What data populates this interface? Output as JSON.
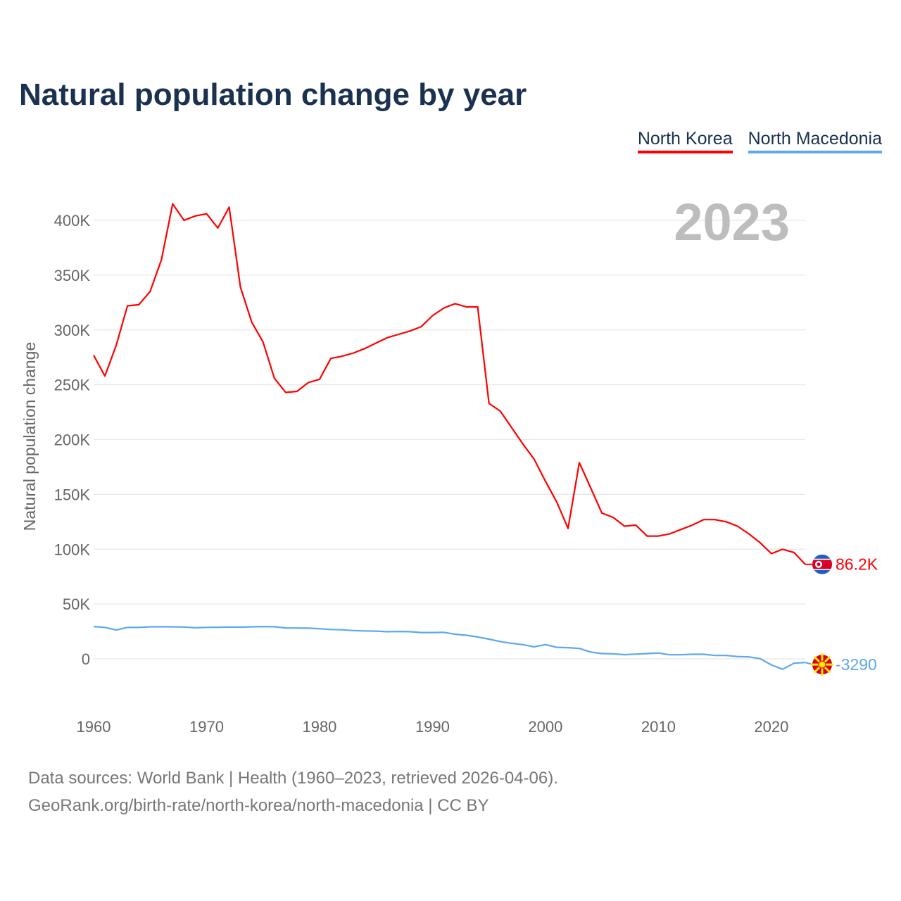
{
  "title": "Natural population change by year",
  "footer": {
    "line1": "Data sources: World Bank | Health (1960–2023, retrieved 2026-04-06).",
    "line2": "GeoRank.org/birth-rate/north-korea/north-macedonia | CC BY"
  },
  "chart_data": {
    "type": "line",
    "title": "Natural population change by year",
    "xlabel": "",
    "ylabel": "Natural population change",
    "year_label": "2023",
    "xlim": [
      1960,
      2023
    ],
    "ylim": [
      -25000,
      430000
    ],
    "x_ticks": [
      1960,
      1970,
      1980,
      1990,
      2000,
      2010,
      2020
    ],
    "y_ticks": [
      0,
      50000,
      100000,
      150000,
      200000,
      250000,
      300000,
      350000,
      400000
    ],
    "y_tick_labels": [
      "0",
      "50K",
      "100K",
      "150K",
      "200K",
      "250K",
      "300K",
      "350K",
      "400K"
    ],
    "grid": true,
    "legend_position": "top-right",
    "x": [
      1960,
      1961,
      1962,
      1963,
      1964,
      1965,
      1966,
      1967,
      1968,
      1969,
      1970,
      1971,
      1972,
      1973,
      1974,
      1975,
      1976,
      1977,
      1978,
      1979,
      1980,
      1981,
      1982,
      1983,
      1984,
      1985,
      1986,
      1987,
      1988,
      1989,
      1990,
      1991,
      1992,
      1993,
      1994,
      1995,
      1996,
      1997,
      1998,
      1999,
      2000,
      2001,
      2002,
      2003,
      2004,
      2005,
      2006,
      2007,
      2008,
      2009,
      2010,
      2011,
      2012,
      2013,
      2014,
      2015,
      2016,
      2017,
      2018,
      2019,
      2020,
      2021,
      2022,
      2023
    ],
    "series": [
      {
        "name": "North Korea",
        "color": "#ff0000",
        "end_label": "86.2K",
        "flag": "north-korea-flag",
        "values": [
          277000,
          258000,
          286000,
          322000,
          323000,
          335000,
          364000,
          415000,
          400000,
          404000,
          406000,
          393000,
          412000,
          339000,
          307000,
          289000,
          256000,
          243000,
          244000,
          252000,
          255000,
          274000,
          276000,
          279000,
          283000,
          288000,
          293000,
          296000,
          299000,
          303000,
          313000,
          320000,
          324000,
          321000,
          321000,
          233000,
          226000,
          211000,
          196000,
          182000,
          162000,
          143000,
          119000,
          179000,
          156000,
          133000,
          129000,
          121000,
          122000,
          112000,
          112000,
          114000,
          118000,
          122000,
          127000,
          127000,
          125000,
          121000,
          114000,
          106000,
          96000,
          100000,
          97000,
          86200
        ]
      },
      {
        "name": "North Macedonia",
        "color": "#5da8ea",
        "end_label": "-3290",
        "flag": "north-macedonia-flag",
        "values": [
          29500,
          28700,
          26300,
          28700,
          28700,
          29200,
          29300,
          29200,
          29000,
          28400,
          28700,
          28800,
          29000,
          28900,
          29200,
          29500,
          29300,
          28200,
          28100,
          28000,
          27500,
          26800,
          26500,
          25800,
          25500,
          25300,
          24800,
          25000,
          24800,
          24000,
          24000,
          24200,
          22500,
          21500,
          20000,
          18000,
          15800,
          14200,
          13000,
          11000,
          13000,
          10500,
          10200,
          9500,
          6200,
          4800,
          4600,
          3800,
          4300,
          4800,
          5300,
          3700,
          3700,
          4200,
          4200,
          3100,
          3100,
          2100,
          1800,
          200,
          -5500,
          -9500,
          -4000,
          -3290
        ]
      }
    ]
  }
}
